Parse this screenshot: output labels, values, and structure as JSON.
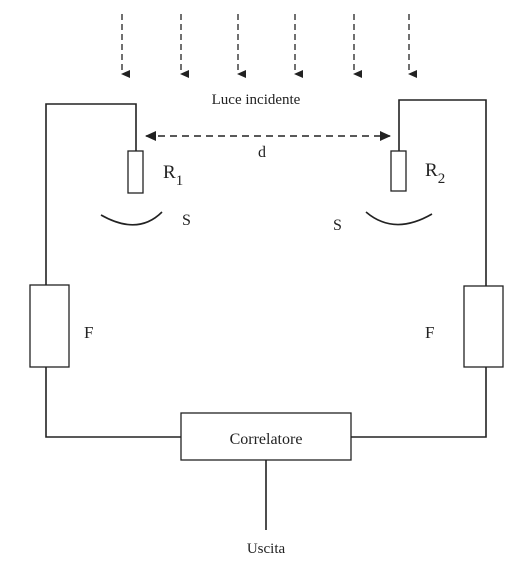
{
  "incident_light_label": "Luce incidente",
  "distance_label": "d",
  "detector_1": {
    "letter": "R",
    "sub": "1"
  },
  "detector_2": {
    "letter": "R",
    "sub": "2"
  },
  "s_label_left": "S",
  "s_label_right": "S",
  "filter_label_left": "F",
  "filter_label_right": "F",
  "correlator_label": "Correlatore",
  "output_label": "Uscita"
}
